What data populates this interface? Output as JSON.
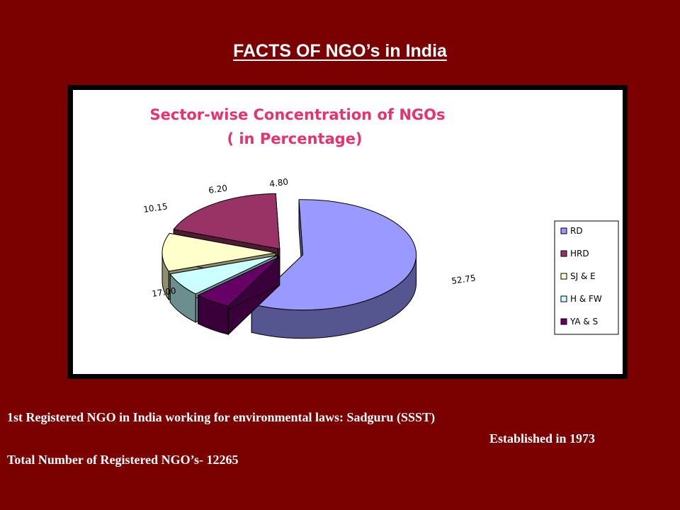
{
  "slide": {
    "title": "FACTS OF NGO’s in India",
    "background": "#7b0000",
    "facts": {
      "first_ngo": "1st Registered NGO in India working for environmental laws: Sadguru (SSST)",
      "established": "Established in 1973",
      "total": "Total Number of  Registered NGO’s- 12265"
    }
  },
  "chart_data": {
    "type": "pie",
    "style": "3d-exploded",
    "title": "Sector-wise Concentration of NGOs",
    "subtitle": "( in Percentage)",
    "legend_position": "right",
    "slices": [
      {
        "name": "RD",
        "label": "52.75",
        "value": 52.75,
        "color": "#9999ff",
        "side": "#55558f"
      },
      {
        "name": "YA & S",
        "label": "4.80",
        "value": 4.8,
        "color": "#660066",
        "side": "#3a003a"
      },
      {
        "name": "H & FW",
        "label": "6.20",
        "value": 6.2,
        "color": "#ccffff",
        "side": "#6b8f8f"
      },
      {
        "name": "SJ & E",
        "label": "10.15",
        "value": 10.15,
        "color": "#ffffcc",
        "side": "#8f8f6b"
      },
      {
        "name": "HRD",
        "label": "17.00",
        "value": 17.0,
        "color": "#993366",
        "side": "#4f1a33"
      }
    ],
    "legend": [
      "RD",
      "HRD",
      "SJ & E",
      "H & FW",
      "YA & S"
    ]
  }
}
